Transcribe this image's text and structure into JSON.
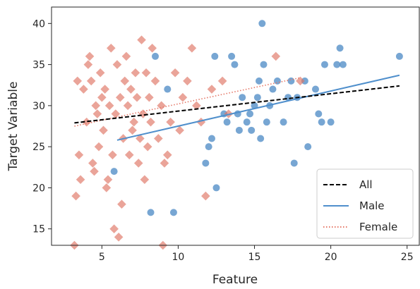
{
  "chart_data": {
    "type": "scatter",
    "xlabel": "Feature",
    "ylabel": "Target Variable",
    "xlim": [
      1.7,
      25.8
    ],
    "ylim": [
      13,
      42
    ],
    "xticks": [
      5,
      10,
      15,
      20,
      25
    ],
    "yticks": [
      15,
      20,
      25,
      30,
      35,
      40
    ],
    "grid": false,
    "legend_position": "lower-right",
    "legend": [
      {
        "label": "All",
        "style": "dashed",
        "color": "#000000"
      },
      {
        "label": "Male",
        "style": "solid",
        "color": "#4f8fcc"
      },
      {
        "label": "Female",
        "style": "dotted",
        "color": "#e57868"
      }
    ],
    "colors": {
      "male": "#4a88c4",
      "female": "#df7363",
      "all": "#000000"
    },
    "series": [
      {
        "marker": "circle",
        "color": "#4a88c4",
        "points": [
          [
            5.8,
            22
          ],
          [
            8.2,
            17
          ],
          [
            8.5,
            36
          ],
          [
            9.3,
            32
          ],
          [
            9.7,
            17
          ],
          [
            11.8,
            23
          ],
          [
            12.0,
            25
          ],
          [
            12.2,
            26
          ],
          [
            12.4,
            36
          ],
          [
            12.5,
            20
          ],
          [
            13.0,
            29
          ],
          [
            13.2,
            28
          ],
          [
            13.5,
            36
          ],
          [
            13.7,
            35
          ],
          [
            13.9,
            29
          ],
          [
            14.0,
            27
          ],
          [
            14.2,
            31
          ],
          [
            14.5,
            28
          ],
          [
            14.7,
            29
          ],
          [
            14.8,
            27
          ],
          [
            15.0,
            30
          ],
          [
            15.2,
            31
          ],
          [
            15.3,
            33
          ],
          [
            15.4,
            26
          ],
          [
            15.5,
            40
          ],
          [
            15.6,
            35
          ],
          [
            15.8,
            28
          ],
          [
            16.0,
            30
          ],
          [
            16.2,
            32
          ],
          [
            16.5,
            33
          ],
          [
            16.9,
            28
          ],
          [
            17.2,
            31
          ],
          [
            17.4,
            33
          ],
          [
            17.6,
            23
          ],
          [
            17.8,
            31
          ],
          [
            18.3,
            33
          ],
          [
            18.5,
            25
          ],
          [
            19.0,
            32
          ],
          [
            19.2,
            29
          ],
          [
            19.4,
            28
          ],
          [
            19.6,
            35
          ],
          [
            20.0,
            28
          ],
          [
            20.4,
            35
          ],
          [
            20.6,
            37
          ],
          [
            20.8,
            35
          ],
          [
            24.5,
            36
          ]
        ]
      },
      {
        "marker": "diamond",
        "color": "#df7363",
        "points": [
          [
            3.2,
            13
          ],
          [
            3.3,
            19
          ],
          [
            3.4,
            33
          ],
          [
            3.5,
            24
          ],
          [
            3.6,
            21
          ],
          [
            3.8,
            32
          ],
          [
            4.0,
            28
          ],
          [
            4.1,
            35
          ],
          [
            4.2,
            36
          ],
          [
            4.3,
            33
          ],
          [
            4.4,
            23
          ],
          [
            4.5,
            22
          ],
          [
            4.6,
            30
          ],
          [
            4.7,
            29
          ],
          [
            4.8,
            25
          ],
          [
            4.9,
            34
          ],
          [
            5.0,
            31
          ],
          [
            5.1,
            27
          ],
          [
            5.2,
            32
          ],
          [
            5.3,
            20
          ],
          [
            5.4,
            21
          ],
          [
            5.5,
            30
          ],
          [
            5.6,
            37
          ],
          [
            5.7,
            24
          ],
          [
            5.8,
            15
          ],
          [
            5.9,
            29
          ],
          [
            6.0,
            35
          ],
          [
            6.1,
            14
          ],
          [
            6.2,
            31
          ],
          [
            6.3,
            18
          ],
          [
            6.4,
            26
          ],
          [
            6.5,
            33
          ],
          [
            6.6,
            36
          ],
          [
            6.7,
            30
          ],
          [
            6.8,
            24
          ],
          [
            6.9,
            32
          ],
          [
            7.0,
            27
          ],
          [
            7.1,
            28
          ],
          [
            7.2,
            34
          ],
          [
            7.3,
            31
          ],
          [
            7.4,
            23
          ],
          [
            7.5,
            26
          ],
          [
            7.6,
            38
          ],
          [
            7.7,
            29
          ],
          [
            7.8,
            21
          ],
          [
            7.9,
            34
          ],
          [
            8.0,
            25
          ],
          [
            8.1,
            31
          ],
          [
            8.2,
            28
          ],
          [
            8.3,
            37
          ],
          [
            8.5,
            33
          ],
          [
            8.7,
            26
          ],
          [
            8.9,
            30
          ],
          [
            9.0,
            13
          ],
          [
            9.1,
            23
          ],
          [
            9.3,
            24
          ],
          [
            9.5,
            28
          ],
          [
            9.8,
            34
          ],
          [
            10.1,
            27
          ],
          [
            10.3,
            31
          ],
          [
            10.6,
            33
          ],
          [
            10.9,
            37
          ],
          [
            11.2,
            30
          ],
          [
            11.5,
            28
          ],
          [
            11.8,
            19
          ],
          [
            12.2,
            32
          ],
          [
            12.9,
            33
          ],
          [
            13.3,
            29
          ],
          [
            16.4,
            36
          ],
          [
            18.0,
            33
          ]
        ]
      }
    ],
    "fit_lines": [
      {
        "name": "All",
        "x": [
          3.2,
          24.5
        ],
        "y": [
          27.9,
          32.4
        ]
      },
      {
        "name": "Male",
        "x": [
          6.0,
          24.5
        ],
        "y": [
          25.8,
          33.7
        ]
      },
      {
        "name": "Female",
        "x": [
          3.2,
          18.0
        ],
        "y": [
          27.5,
          33.4
        ]
      }
    ]
  }
}
